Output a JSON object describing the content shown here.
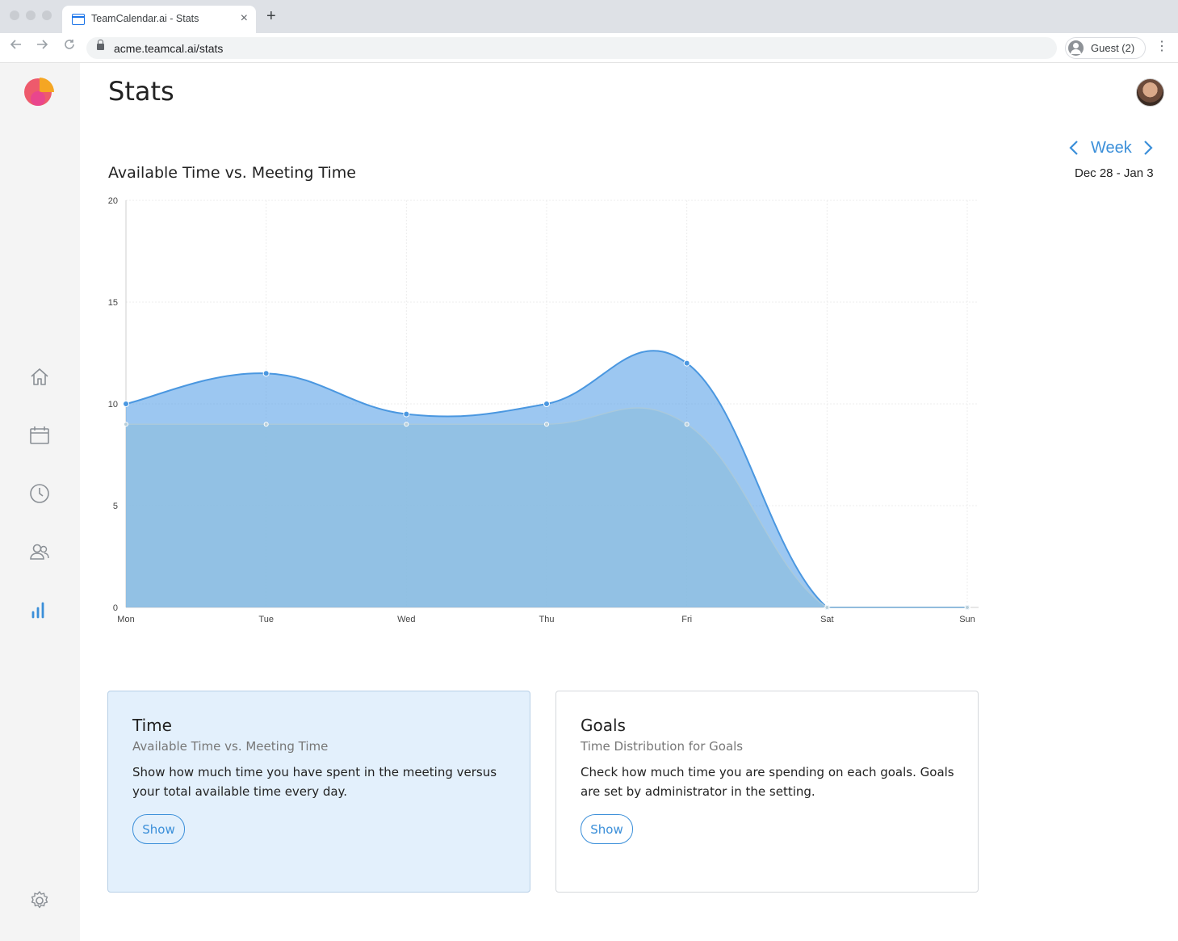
{
  "browser": {
    "tab_title": "TeamCalendar.ai - Stats",
    "tab_close": "×",
    "new_tab": "+",
    "url": "acme.teamcal.ai/stats",
    "profile_label": "Guest (2)",
    "menu": "⋮"
  },
  "page": {
    "title": "Stats"
  },
  "week_nav": {
    "prev": "‹",
    "label": "Week",
    "next": "›",
    "date_range": "Dec 28 - Jan 3"
  },
  "sidebar": {
    "items": [
      "home-icon",
      "calendar-icon",
      "clock-icon",
      "team-icon",
      "stats-icon",
      "settings-icon"
    ],
    "active_color": "#3b8fd9",
    "icon_color": "#8a8f95"
  },
  "chart_title": "Available Time vs. Meeting Time",
  "chart_data": {
    "type": "area",
    "categories": [
      "Mon",
      "Tue",
      "Wed",
      "Thu",
      "Fri",
      "Sat",
      "Sun"
    ],
    "series": [
      {
        "values": [
          10,
          11.5,
          9.5,
          10,
          12,
          0,
          0
        ],
        "color": "#5aa2e8"
      },
      {
        "values": [
          9,
          9,
          9,
          9,
          9,
          0,
          0
        ],
        "color": "#8fbfdf"
      }
    ],
    "ylim": [
      0,
      20
    ],
    "yticks": [
      0,
      5,
      10,
      15,
      20
    ],
    "grid": true
  },
  "cards": [
    {
      "title": "Time",
      "subtitle": "Available Time vs. Meeting Time",
      "description": "Show how much time you have spent in the meeting versus your total available time every day.",
      "button": "Show"
    },
    {
      "title": "Goals",
      "subtitle": "Time Distribution for Goals",
      "description": "Check how much time you are spending on each goals. Goals are set by administrator in the setting.",
      "button": "Show"
    }
  ]
}
